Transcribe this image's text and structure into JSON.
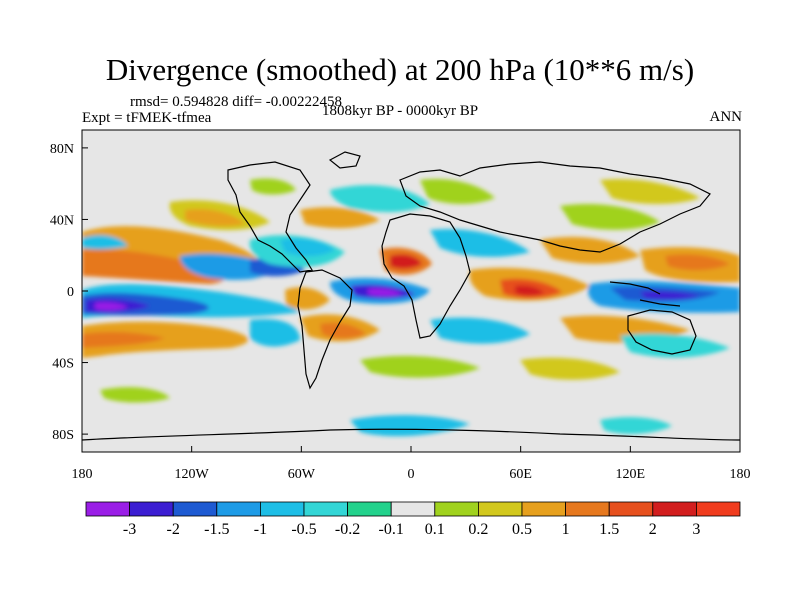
{
  "title": "Divergence (smoothed) at 200 hPa (10**6 m/s)",
  "stats_text": "rmsd= 0.594828 diff= -0.00222458",
  "experiment_text": "Expt = tFMEK-tfmea",
  "period_text": "1808kyr BP - 0000kyr BP",
  "season_text": "ANN",
  "chart_data": {
    "type": "heatmap",
    "variable": "Divergence (smoothed) at 200 hPa",
    "units": "10**6 m/s",
    "x_ticks": [
      "180",
      "120W",
      "60W",
      "0",
      "60E",
      "120E",
      "180"
    ],
    "y_ticks": [
      "80N",
      "40N",
      "0",
      "40S",
      "80S"
    ],
    "xlim": [
      -180,
      180
    ],
    "ylim": [
      -90,
      90
    ],
    "colorbar_labels": [
      "-3",
      "-2",
      "-1.5",
      "-1",
      "-0.5",
      "-0.2",
      "-0.1",
      "0.1",
      "0.2",
      "0.5",
      "1",
      "1.5",
      "2",
      "3"
    ],
    "colorbar_colors": [
      "#9a1ee6",
      "#3c1ed2",
      "#1e5ad2",
      "#1e9be6",
      "#1ebee6",
      "#33d6d6",
      "#23d28c",
      "#e6e6e6",
      "#a0d21e",
      "#d2c81e",
      "#e6a01e",
      "#e6781e",
      "#e6501e",
      "#d21e1e",
      "#f03c1e"
    ],
    "features": [
      {
        "lon": -155,
        "lat": -5,
        "value": -3
      },
      {
        "lon": -155,
        "lat": -18,
        "value": 1
      },
      {
        "lon": -120,
        "lat": 10,
        "value": -1
      },
      {
        "lon": -100,
        "lat": 18,
        "value": 1
      },
      {
        "lon": -20,
        "lat": 0,
        "value": -2.5
      },
      {
        "lon": -10,
        "lat": 15,
        "value": 3
      },
      {
        "lon": 40,
        "lat": -5,
        "value": 2
      },
      {
        "lon": 120,
        "lat": 0,
        "value": -2
      },
      {
        "lon": 160,
        "lat": 12,
        "value": 1.5
      },
      {
        "lon": 10,
        "lat": -72,
        "value": -0.3
      }
    ]
  }
}
